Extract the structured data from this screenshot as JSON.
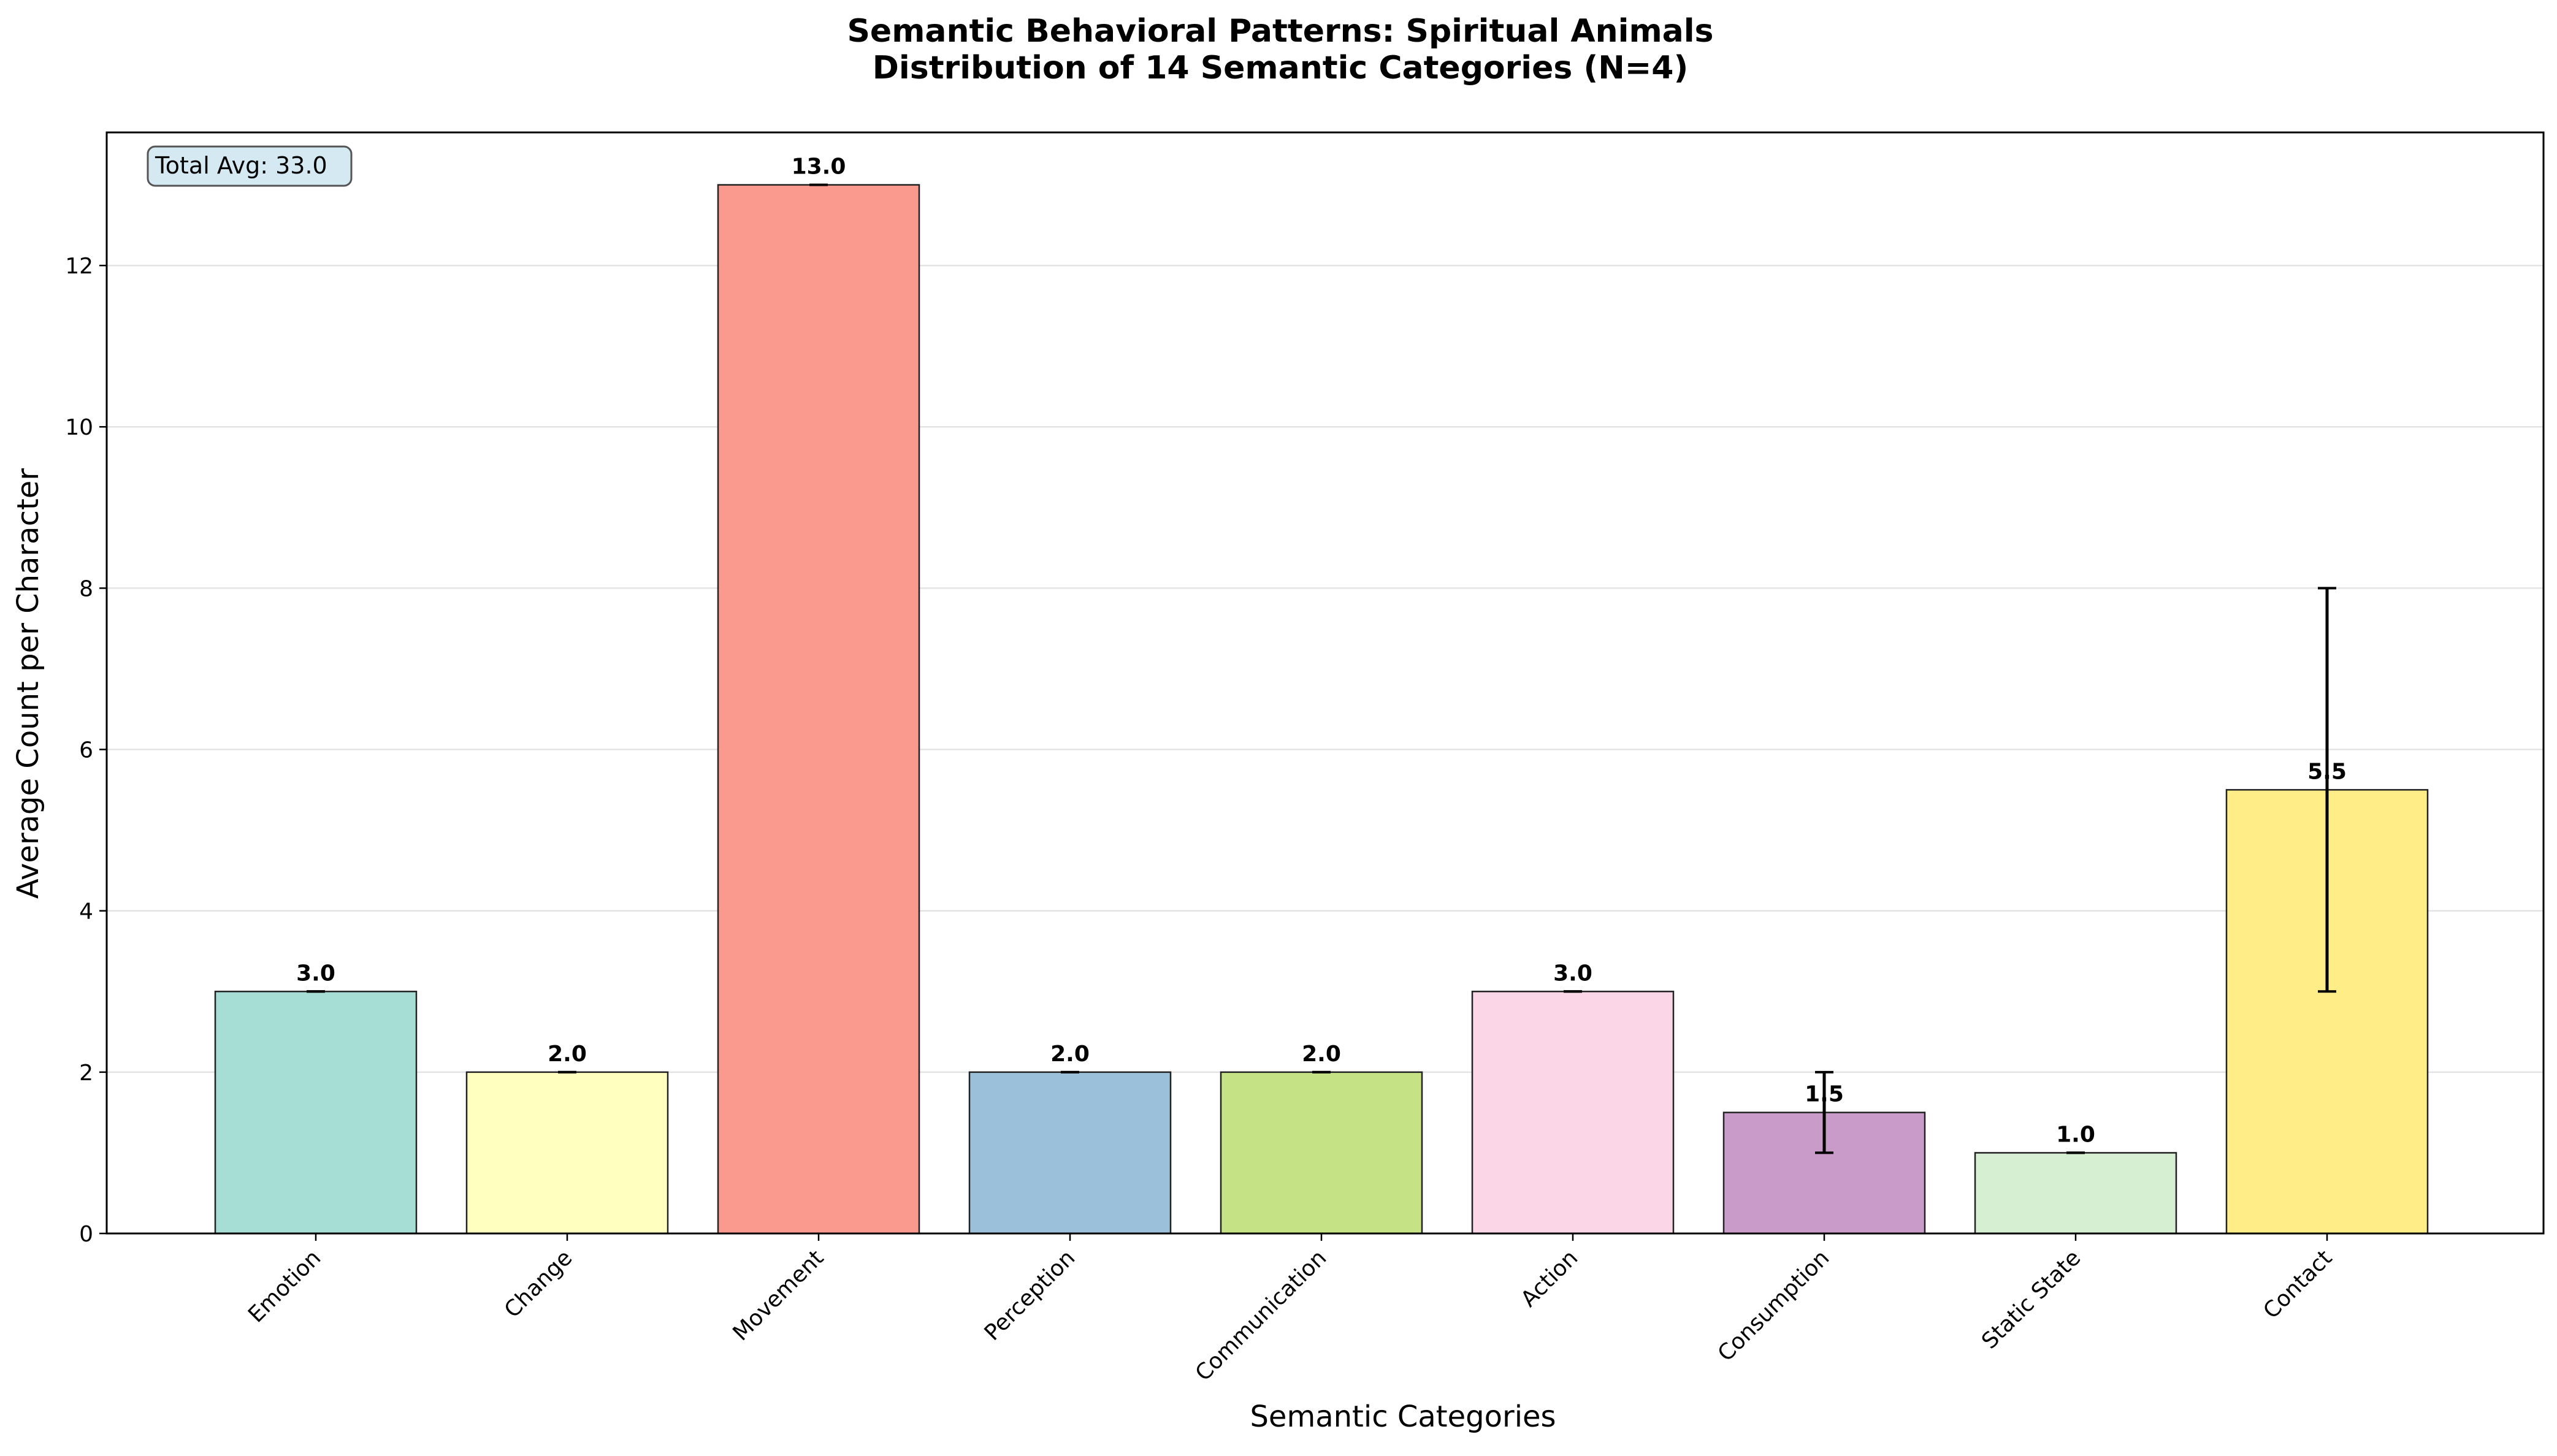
{
  "chart_data": {
    "type": "bar",
    "title_line1": "Semantic Behavioral Patterns: Spiritual Animals",
    "title_line2": "Distribution of 14 Semantic Categories (N=4)",
    "xlabel": "Semantic Categories",
    "ylabel": "Average Count per Character",
    "annotation": "Total Avg: 33.0",
    "categories": [
      "Emotion",
      "Change",
      "Movement",
      "Perception",
      "Communication",
      "Action",
      "Consumption",
      "Static State",
      "Contact"
    ],
    "values": [
      3.0,
      2.0,
      13.0,
      2.0,
      2.0,
      3.0,
      1.5,
      1.0,
      5.5
    ],
    "errors": [
      0,
      0,
      0,
      0,
      0,
      0,
      0.5,
      0,
      2.5
    ],
    "value_labels": [
      "3.0",
      "2.0",
      "13.0",
      "2.0",
      "2.0",
      "3.0",
      "1.5",
      "1.0",
      "5.5"
    ],
    "colors": [
      "#a6ddd4",
      "#ffffc0",
      "#fa9a8f",
      "#9bc0da",
      "#c5e384",
      "#fbd6e7",
      "#c99bc9",
      "#d6eed2",
      "#ffee88"
    ],
    "ylim": [
      0,
      13.65
    ],
    "yticks": [
      0,
      2,
      4,
      6,
      8,
      10,
      12
    ],
    "grid": "y",
    "legend": "none"
  }
}
